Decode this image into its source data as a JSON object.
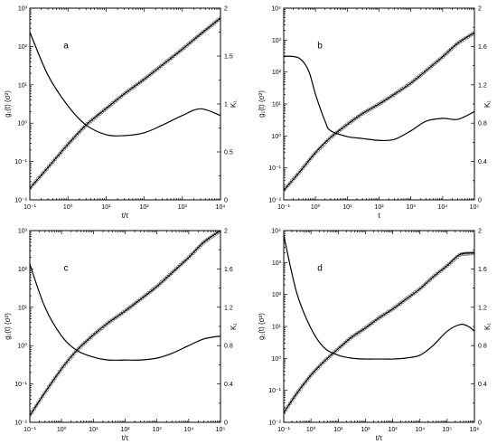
{
  "chart_data": [
    {
      "type": "line",
      "panel_label": "a",
      "xlabel": "t/τ",
      "ylabel": "g₁(t) (σ²)",
      "y2label": "K₁",
      "xscale": "log",
      "yscale": "log",
      "xlim": [
        0.1,
        10000
      ],
      "ylim": [
        0.01,
        1000
      ],
      "y2lim": [
        0,
        2
      ],
      "x_ticks": [
        "10⁻¹",
        "10⁰",
        "10¹",
        "10²",
        "10³",
        "10⁴"
      ],
      "y_ticks": [
        "10⁻²",
        "10⁻¹",
        "10⁰",
        "10¹",
        "10²",
        "10³"
      ],
      "y2_ticks": [
        "0",
        "0.5",
        "1",
        "1.5",
        "2"
      ],
      "grid": false,
      "series": [
        {
          "role": "g1-msd-markers",
          "axis": "left",
          "marker": "open-circle",
          "x": [
            0.1,
            0.3,
            1,
            3,
            10,
            30,
            100,
            300,
            1000,
            3000,
            10000
          ],
          "y": [
            0.02,
            0.07,
            0.28,
            0.9,
            2.4,
            5.8,
            14,
            33,
            85,
            210,
            550
          ]
        },
        {
          "role": "g1-msd-fit",
          "axis": "left",
          "x": [
            0.1,
            0.3,
            1,
            3,
            10,
            30,
            100,
            300,
            1000,
            3000,
            10000
          ],
          "y": [
            0.02,
            0.07,
            0.28,
            0.9,
            2.4,
            5.8,
            14,
            33,
            85,
            210,
            550
          ]
        },
        {
          "role": "non-gaussian-parameter",
          "axis": "right",
          "x": [
            0.1,
            0.3,
            1,
            3,
            10,
            30,
            100,
            300,
            1000,
            3000,
            10000
          ],
          "y": [
            1.75,
            1.3,
            0.98,
            0.78,
            0.68,
            0.67,
            0.7,
            0.78,
            0.88,
            0.95,
            0.88
          ]
        }
      ]
    },
    {
      "type": "line",
      "panel_label": "b",
      "xlabel": "t",
      "ylabel": "g₁(t) (σ²)",
      "y2label": "K₁",
      "xscale": "log",
      "yscale": "log",
      "xlim": [
        0.1,
        100000
      ],
      "ylim": [
        0.01,
        10000
      ],
      "y2lim": [
        0,
        2
      ],
      "x_ticks": [
        "10⁻¹",
        "10⁰",
        "10¹",
        "10²",
        "10³",
        "10⁴",
        "10⁵"
      ],
      "y_ticks": [
        "10⁻²",
        "10⁻¹",
        "10⁰",
        "10¹",
        "10²",
        "10³",
        "10⁴"
      ],
      "y2_ticks": [
        "0",
        "0.4",
        "0.8",
        "1.2",
        "1.6",
        "2"
      ],
      "grid": false,
      "series": [
        {
          "role": "g1-msd-markers",
          "axis": "left",
          "marker": "open-circle",
          "x": [
            0.1,
            0.3,
            1,
            3,
            10,
            30,
            100,
            300,
            1000,
            3000,
            10000,
            30000,
            100000
          ],
          "y": [
            0.02,
            0.07,
            0.3,
            0.9,
            2.3,
            5,
            10,
            20,
            45,
            110,
            300,
            800,
            1700
          ]
        },
        {
          "role": "g1-msd-fit",
          "axis": "left",
          "x": [
            0.1,
            0.3,
            1,
            3,
            10,
            30,
            100,
            300,
            1000,
            3000,
            10000,
            30000,
            100000
          ],
          "y": [
            0.02,
            0.07,
            0.3,
            0.9,
            2.3,
            5,
            10,
            20,
            45,
            110,
            300,
            800,
            1700
          ]
        },
        {
          "role": "non-gaussian-parameter",
          "axis": "right",
          "x": [
            0.1,
            0.3,
            0.6,
            1,
            2,
            3,
            10,
            30,
            100,
            300,
            1000,
            3000,
            10000,
            30000,
            100000
          ],
          "y": [
            1.5,
            1.48,
            1.35,
            1.1,
            0.82,
            0.72,
            0.66,
            0.64,
            0.62,
            0.63,
            0.72,
            0.82,
            0.85,
            0.84,
            0.92
          ]
        }
      ]
    },
    {
      "type": "line",
      "panel_label": "c",
      "xlabel": "t/τ",
      "ylabel": "g₁(t) (σ²)",
      "y2label": "K₁",
      "xscale": "log",
      "yscale": "log",
      "xlim": [
        0.1,
        100000
      ],
      "ylim": [
        0.01,
        1000
      ],
      "y2lim": [
        0,
        2
      ],
      "x_ticks": [
        "10⁻¹",
        "10⁰",
        "10¹",
        "10²",
        "10³",
        "10⁴",
        "10⁵"
      ],
      "y_ticks": [
        "10⁻²",
        "10⁻¹",
        "10⁰",
        "10¹",
        "10²",
        "10³"
      ],
      "y2_ticks": [
        "0",
        "0.4",
        "0.8",
        "1.2",
        "1.6",
        "2"
      ],
      "grid": false,
      "series": [
        {
          "role": "g1-msd-markers",
          "axis": "left",
          "marker": "open-circle",
          "x": [
            0.1,
            0.3,
            1,
            3,
            10,
            30,
            100,
            300,
            1000,
            3000,
            10000,
            30000,
            100000
          ],
          "y": [
            0.015,
            0.06,
            0.25,
            0.75,
            1.9,
            4,
            8,
            16,
            35,
            80,
            200,
            500,
            1000
          ]
        },
        {
          "role": "g1-msd-fit",
          "axis": "left",
          "x": [
            0.1,
            0.3,
            1,
            3,
            10,
            30,
            100,
            300,
            1000,
            3000,
            10000,
            30000,
            100000
          ],
          "y": [
            0.015,
            0.06,
            0.25,
            0.75,
            1.9,
            4,
            8,
            16,
            35,
            80,
            200,
            500,
            1000
          ]
        },
        {
          "role": "non-gaussian-parameter",
          "axis": "right",
          "x": [
            0.1,
            0.3,
            1,
            3,
            10,
            30,
            100,
            300,
            1000,
            3000,
            10000,
            30000,
            100000
          ],
          "y": [
            1.65,
            1.2,
            0.9,
            0.75,
            0.68,
            0.65,
            0.65,
            0.65,
            0.67,
            0.72,
            0.8,
            0.87,
            0.9
          ]
        }
      ]
    },
    {
      "type": "line",
      "panel_label": "d",
      "xlabel": "t/τ",
      "ylabel": "g₁(t) (σ²)",
      "y2label": "K₁",
      "xscale": "log",
      "yscale": "log",
      "xlim": [
        0.1,
        1000000
      ],
      "ylim": [
        0.01,
        10000
      ],
      "y2lim": [
        0,
        2
      ],
      "x_ticks": [
        "10⁻¹",
        "10⁰",
        "10¹",
        "10²",
        "10³",
        "10⁴",
        "10⁵",
        "10⁶"
      ],
      "y_ticks": [
        "10⁻²",
        "10⁻¹",
        "10⁰",
        "10¹",
        "10²",
        "10³",
        "10⁴"
      ],
      "y2_ticks": [
        "0",
        "0.4",
        "0.8",
        "1.2",
        "1.6",
        "2"
      ],
      "grid": false,
      "series": [
        {
          "role": "g1-msd-markers",
          "axis": "left",
          "marker": "open-circle",
          "x": [
            0.1,
            0.3,
            1,
            3,
            10,
            30,
            100,
            300,
            1000,
            3000,
            10000,
            30000,
            100000,
            300000,
            1000000
          ],
          "y": [
            0.02,
            0.08,
            0.3,
            0.8,
            2,
            4.5,
            9,
            18,
            35,
            70,
            150,
            350,
            800,
            1800,
            2000
          ]
        },
        {
          "role": "g1-msd-fit",
          "axis": "left",
          "x": [
            0.1,
            0.3,
            1,
            3,
            10,
            30,
            100,
            300,
            1000,
            3000,
            10000,
            30000,
            100000,
            300000,
            1000000
          ],
          "y": [
            0.02,
            0.08,
            0.3,
            0.8,
            2,
            4.5,
            9,
            18,
            35,
            70,
            150,
            350,
            800,
            1800,
            2000
          ]
        },
        {
          "role": "non-gaussian-parameter",
          "axis": "right",
          "x": [
            0.1,
            0.3,
            1,
            3,
            10,
            30,
            100,
            300,
            1000,
            3000,
            10000,
            30000,
            100000,
            300000,
            600000,
            1000000
          ],
          "y": [
            1.95,
            1.35,
            0.98,
            0.78,
            0.7,
            0.67,
            0.66,
            0.66,
            0.66,
            0.67,
            0.7,
            0.8,
            0.95,
            1.02,
            1.0,
            0.95
          ]
        }
      ]
    }
  ]
}
